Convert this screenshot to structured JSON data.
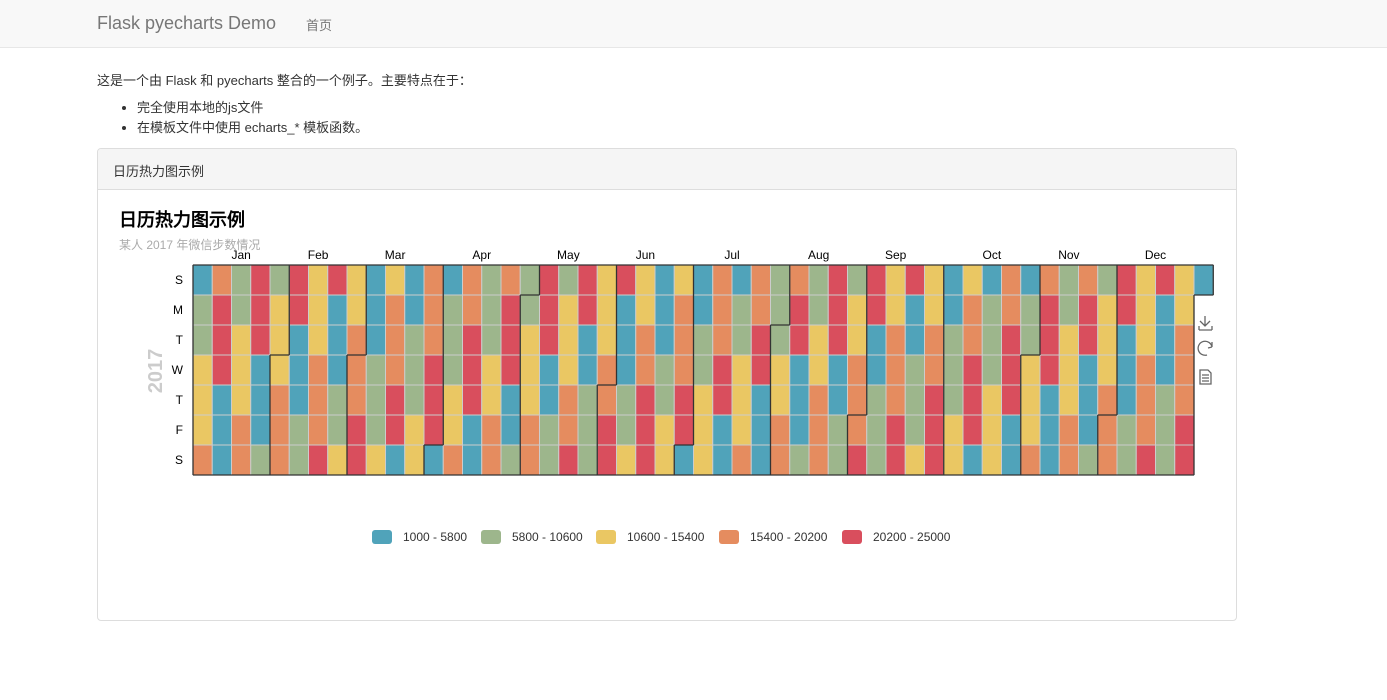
{
  "nav": {
    "brand": "Flask pyecharts Demo",
    "home": "首页"
  },
  "intro": "这是一个由 Flask 和 pyecharts 整合的一个例子。主要特点在于：",
  "features": [
    "完全使用本地的js文件",
    "在模板文件中使用 echarts_* 模板函数。"
  ],
  "panel": {
    "heading": "日历热力图示例"
  },
  "colors": [
    "#50a3ba",
    "#9db68c",
    "#eac763",
    "#e58c5f",
    "#d94e5d"
  ],
  "chart_data": {
    "type": "heatmap",
    "title": "日历热力图示例",
    "subtitle": "某人 2017 年微信步数情况",
    "year": "2017",
    "months": [
      "Jan",
      "Feb",
      "Mar",
      "Apr",
      "May",
      "Jun",
      "Jul",
      "Aug",
      "Sep",
      "Oct",
      "Nov",
      "Dec"
    ],
    "days": [
      "S",
      "M",
      "T",
      "W",
      "T",
      "F",
      "S"
    ],
    "legend": [
      "1000 - 5800",
      "5800 - 10600",
      "10600 - 15400",
      "15400 - 20200",
      "20200 - 25000"
    ],
    "value_range": [
      1000,
      25000
    ],
    "grid": false,
    "legend_position": "bottom",
    "toolbox": [
      "download-icon",
      "refresh-icon",
      "data-view-icon"
    ],
    "values": "each day of 2017 is drawn in one of the five ranges; the per-day values are not printed"
  }
}
